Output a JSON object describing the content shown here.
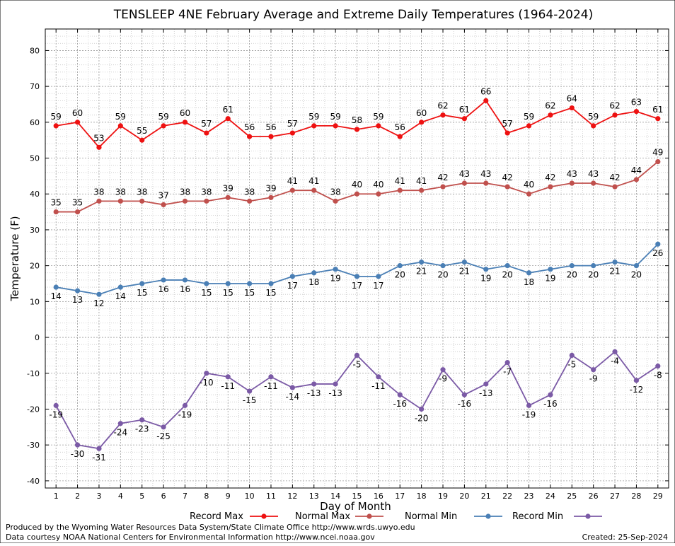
{
  "chart_data": {
    "type": "line",
    "title": "TENSLEEP 4NE February Average and Extreme Daily Temperatures (1964-2024)",
    "xlabel": "Day of Month",
    "ylabel": "Temperature (F)",
    "ylim": [
      -42,
      86
    ],
    "xlim": [
      0.5,
      29.5
    ],
    "yticks": [
      -40,
      -30,
      -20,
      -10,
      0,
      10,
      20,
      30,
      40,
      50,
      60,
      70,
      80
    ],
    "x": [
      1,
      2,
      3,
      4,
      5,
      6,
      7,
      8,
      9,
      10,
      11,
      12,
      13,
      14,
      15,
      16,
      17,
      18,
      19,
      20,
      21,
      22,
      23,
      24,
      25,
      26,
      27,
      28,
      29
    ],
    "grid": true,
    "legend_position": "bottom",
    "series": [
      {
        "name": "Record Max",
        "color": "#ee1111",
        "label_pos": "above",
        "values": [
          59,
          60,
          53,
          59,
          55,
          59,
          60,
          57,
          61,
          56,
          56,
          57,
          59,
          59,
          58,
          59,
          56,
          60,
          62,
          61,
          66,
          57,
          59,
          62,
          64,
          59,
          62,
          63,
          61
        ]
      },
      {
        "name": "Normal Max",
        "color": "#c0504d",
        "label_pos": "above",
        "values": [
          35,
          35,
          38,
          38,
          38,
          37,
          38,
          38,
          39,
          38,
          39,
          41,
          41,
          38,
          40,
          40,
          41,
          41,
          42,
          43,
          43,
          42,
          40,
          42,
          43,
          43,
          42,
          44,
          49
        ]
      },
      {
        "name": "Normal Min",
        "color": "#4a7fb5",
        "label_pos": "below",
        "values": [
          14,
          13,
          12,
          14,
          15,
          16,
          16,
          15,
          15,
          15,
          15,
          17,
          18,
          19,
          17,
          17,
          20,
          21,
          20,
          21,
          19,
          20,
          18,
          19,
          20,
          20,
          21,
          20,
          26
        ]
      },
      {
        "name": "Record Min",
        "color": "#7b5aa6",
        "label_pos": "below",
        "values": [
          -19,
          -30,
          -31,
          -24,
          -23,
          -25,
          -19,
          -10,
          -11,
          -15,
          -11,
          -14,
          -13,
          -13,
          -5,
          -11,
          -16,
          -20,
          -9,
          -16,
          -13,
          -7,
          -19,
          -16,
          -5,
          -9,
          -4,
          -12,
          -8
        ]
      }
    ]
  },
  "footer": {
    "produced_by": "Produced by the Wyoming Water Resources Data System/State Climate Office http://www.wrds.uwyo.edu",
    "courtesy": "Data courtesy NOAA National Centers for Environmental Information http://www.ncei.noaa.gov",
    "created": "Created: 25-Sep-2024"
  }
}
